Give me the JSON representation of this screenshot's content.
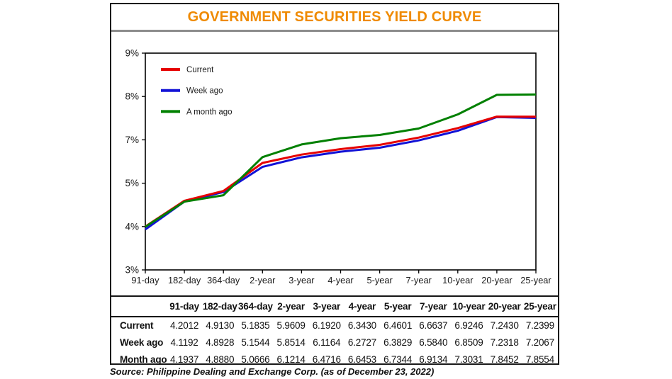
{
  "title": "GOVERNMENT SECURITIES YIELD CURVE",
  "source": "Source: Philippine Dealing and Exchange Corp. (as of December 23, 2022)",
  "colors": {
    "title_accent": "#ef8a00",
    "separator_gray": "#8c8c8c",
    "current_line": "#e60000",
    "week_ago_line": "#1212d6",
    "month_ago_line": "#008000"
  },
  "chart_data": {
    "type": "line",
    "title": "GOVERNMENT SECURITIES YIELD CURVE",
    "categories": [
      "91-day",
      "182-day",
      "364-day",
      "2-year",
      "3-year",
      "4-year",
      "5-year",
      "7-year",
      "10-year",
      "20-year",
      "25-year"
    ],
    "y_axis_labels": [
      "9%",
      "8%",
      "7%",
      "5%",
      "4%",
      "3%"
    ],
    "ylim": [
      3,
      9
    ],
    "grid": false,
    "legend_position": "top-left-inside",
    "series": [
      {
        "name": "Current",
        "color": "#e60000",
        "values": [
          4.2012,
          4.913,
          5.1835,
          5.9609,
          6.192,
          6.343,
          6.4601,
          6.6637,
          6.9246,
          7.243,
          7.2399
        ]
      },
      {
        "name": "Week ago",
        "color": "#1212d6",
        "values": [
          4.1192,
          4.8928,
          5.1544,
          5.8514,
          6.1164,
          6.2727,
          6.3829,
          6.584,
          6.8509,
          7.2318,
          7.2067
        ]
      },
      {
        "name": "A month ago",
        "color": "#008000",
        "values": [
          4.1937,
          4.888,
          5.0666,
          6.1214,
          6.4716,
          6.6453,
          6.7344,
          6.9134,
          7.3031,
          7.8452,
          7.8554
        ]
      }
    ]
  },
  "table": {
    "headers": [
      "",
      "91-day",
      "182-day",
      "364-day",
      "2-year",
      "3-year",
      "4-year",
      "5-year",
      "7-year",
      "10-year",
      "20-year",
      "25-year"
    ],
    "rows": [
      {
        "label": "Current",
        "values": [
          "4.2012",
          "4.9130",
          "5.1835",
          "5.9609",
          "6.1920",
          "6.3430",
          "6.4601",
          "6.6637",
          "6.9246",
          "7.2430",
          "7.2399"
        ]
      },
      {
        "label": "Week ago",
        "values": [
          "4.1192",
          "4.8928",
          "5.1544",
          "5.8514",
          "6.1164",
          "6.2727",
          "6.3829",
          "6.5840",
          "6.8509",
          "7.2318",
          "7.2067"
        ]
      },
      {
        "label": "Month ago",
        "values": [
          "4.1937",
          "4.8880",
          "5.0666",
          "6.1214",
          "6.4716",
          "6.6453",
          "6.7344",
          "6.9134",
          "7.3031",
          "7.8452",
          "7.8554"
        ]
      }
    ]
  }
}
